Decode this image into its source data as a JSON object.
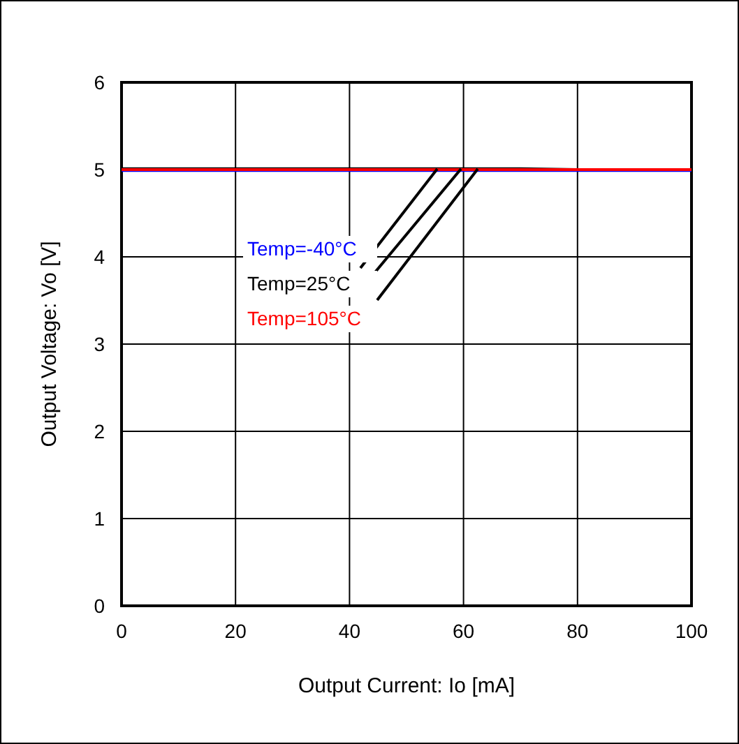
{
  "chart_data": {
    "type": "line",
    "xlabel": "Output Current: Io [mA]",
    "ylabel": "Output Voltage: Vo [V]",
    "x": [
      0,
      20,
      40,
      60,
      70,
      80,
      100
    ],
    "series": [
      {
        "name": "Temp=-40°C",
        "color": "#0000ff",
        "values": [
          4.99,
          4.99,
          4.99,
          4.99,
          4.99,
          4.99,
          4.99
        ]
      },
      {
        "name": "Temp=25°C",
        "color": "#000000",
        "values": [
          5.01,
          5.01,
          5.01,
          5.01,
          5.01,
          5.0,
          5.0
        ]
      },
      {
        "name": "Temp=105°C",
        "color": "#ff0000",
        "values": [
          5.0,
          5.0,
          5.0,
          5.0,
          5.0,
          5.0,
          5.0
        ]
      }
    ],
    "xlim": [
      0,
      100
    ],
    "xticks": [
      0,
      20,
      40,
      60,
      80,
      100
    ],
    "ylim": [
      0,
      6
    ],
    "yticks": [
      0,
      1,
      2,
      3,
      4,
      5,
      6
    ],
    "grid": true,
    "marker": "none",
    "line_style": "solid"
  }
}
